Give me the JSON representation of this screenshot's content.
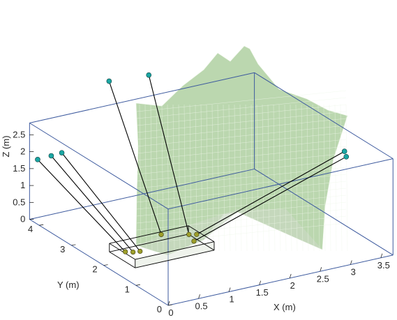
{
  "chart_data": {
    "type": "3d-surface-with-cables",
    "title": "",
    "xlabel": "X (m)",
    "ylabel": "Y (m)",
    "zlabel": "Z (m)",
    "x_ticks": [
      "0",
      "0.5",
      "1",
      "1.5",
      "2",
      "2.5",
      "3",
      "3.5"
    ],
    "y_ticks": [
      "0",
      "1",
      "2",
      "3",
      "4"
    ],
    "z_ticks": [
      "0",
      "0.5",
      "1",
      "1.5",
      "2",
      "2.5"
    ],
    "box_color": "#3d5a9e",
    "surface_fill": "#a8cc98",
    "surface_edge": "#eef6e8",
    "cable_color": "#000000",
    "anchor_color": "#1aa6a3",
    "attachment_color": "#9d9e2a",
    "platform_color": "#000000",
    "anchors": [
      {
        "x": -0.45,
        "y": 3.2,
        "z": 2.6
      },
      {
        "x": -0.2,
        "y": 3.25,
        "z": 2.58
      },
      {
        "x": 0.0,
        "y": 3.3,
        "z": 2.56
      },
      {
        "x": 1.15,
        "y": 4.0,
        "z": 3.8
      },
      {
        "x": 1.75,
        "y": 3.9,
        "z": 3.8
      },
      {
        "x": 3.75,
        "y": 1.6,
        "z": 2.1
      },
      {
        "x": 3.7,
        "y": 1.45,
        "z": 2.05
      }
    ],
    "attachments": [
      {
        "x": 0.25,
        "y": 1.8,
        "z": 0.42
      },
      {
        "x": 0.35,
        "y": 1.75,
        "z": 0.4
      },
      {
        "x": 0.45,
        "y": 1.72,
        "z": 0.4
      },
      {
        "x": 1.0,
        "y": 2.1,
        "z": 0.45
      },
      {
        "x": 1.35,
        "y": 1.9,
        "z": 0.43
      },
      {
        "x": 1.45,
        "y": 1.85,
        "z": 0.42
      },
      {
        "x": 1.3,
        "y": 1.65,
        "z": 0.4
      }
    ],
    "cables": [
      [
        0,
        0
      ],
      [
        1,
        1
      ],
      [
        2,
        2
      ],
      [
        3,
        3
      ],
      [
        4,
        4
      ],
      [
        5,
        5
      ],
      [
        6,
        6
      ]
    ],
    "platform_box": {
      "x": [
        0.2,
        1.5
      ],
      "y": [
        1.4,
        2.2
      ],
      "z": [
        0.2,
        0.45
      ]
    },
    "grid": false,
    "legend": "none"
  }
}
